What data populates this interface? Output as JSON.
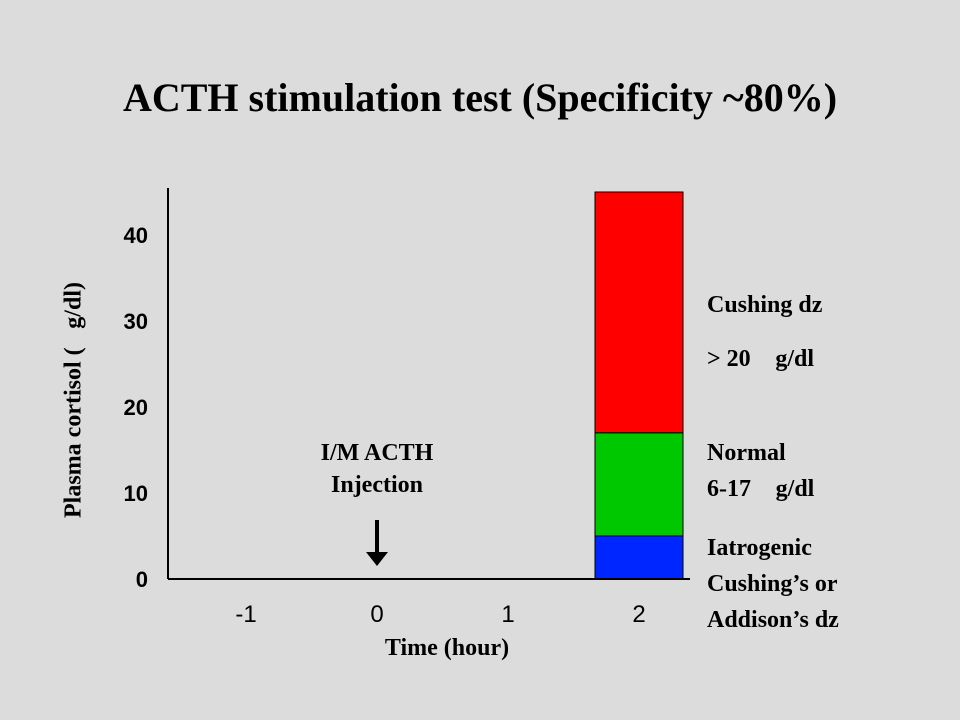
{
  "chart_data": {
    "type": "bar",
    "title": "ACTH stimulation test (Specificity ~80%)",
    "xlabel": "Time (hour)",
    "ylabel": "Plasma cortisol (g/dl)",
    "x_ticks": [
      "-1",
      "0",
      "1",
      "2"
    ],
    "y_ticks": [
      "0",
      "10",
      "20",
      "30",
      "40"
    ],
    "ylim": [
      0,
      45
    ],
    "bar_x": 2,
    "segments": [
      {
        "from": 0,
        "to": 5,
        "color": "#0026ff"
      },
      {
        "from": 5,
        "to": 17,
        "color": "#00c800"
      },
      {
        "from": 17,
        "to": 45,
        "color": "#ff0000"
      }
    ],
    "annotation": {
      "line1": "I/M ACTH",
      "line2": "Injection",
      "x": 0
    },
    "ranges": {
      "cushing": {
        "line1": "Cushing dz",
        "line2": "> 20 g/dl"
      },
      "normal": {
        "line1": "Normal",
        "line2": "6-17 g/dl"
      },
      "low": {
        "line1": "Iatrogenic",
        "line2": "Cushing’s or",
        "line3": "Addison’s dz"
      }
    }
  }
}
